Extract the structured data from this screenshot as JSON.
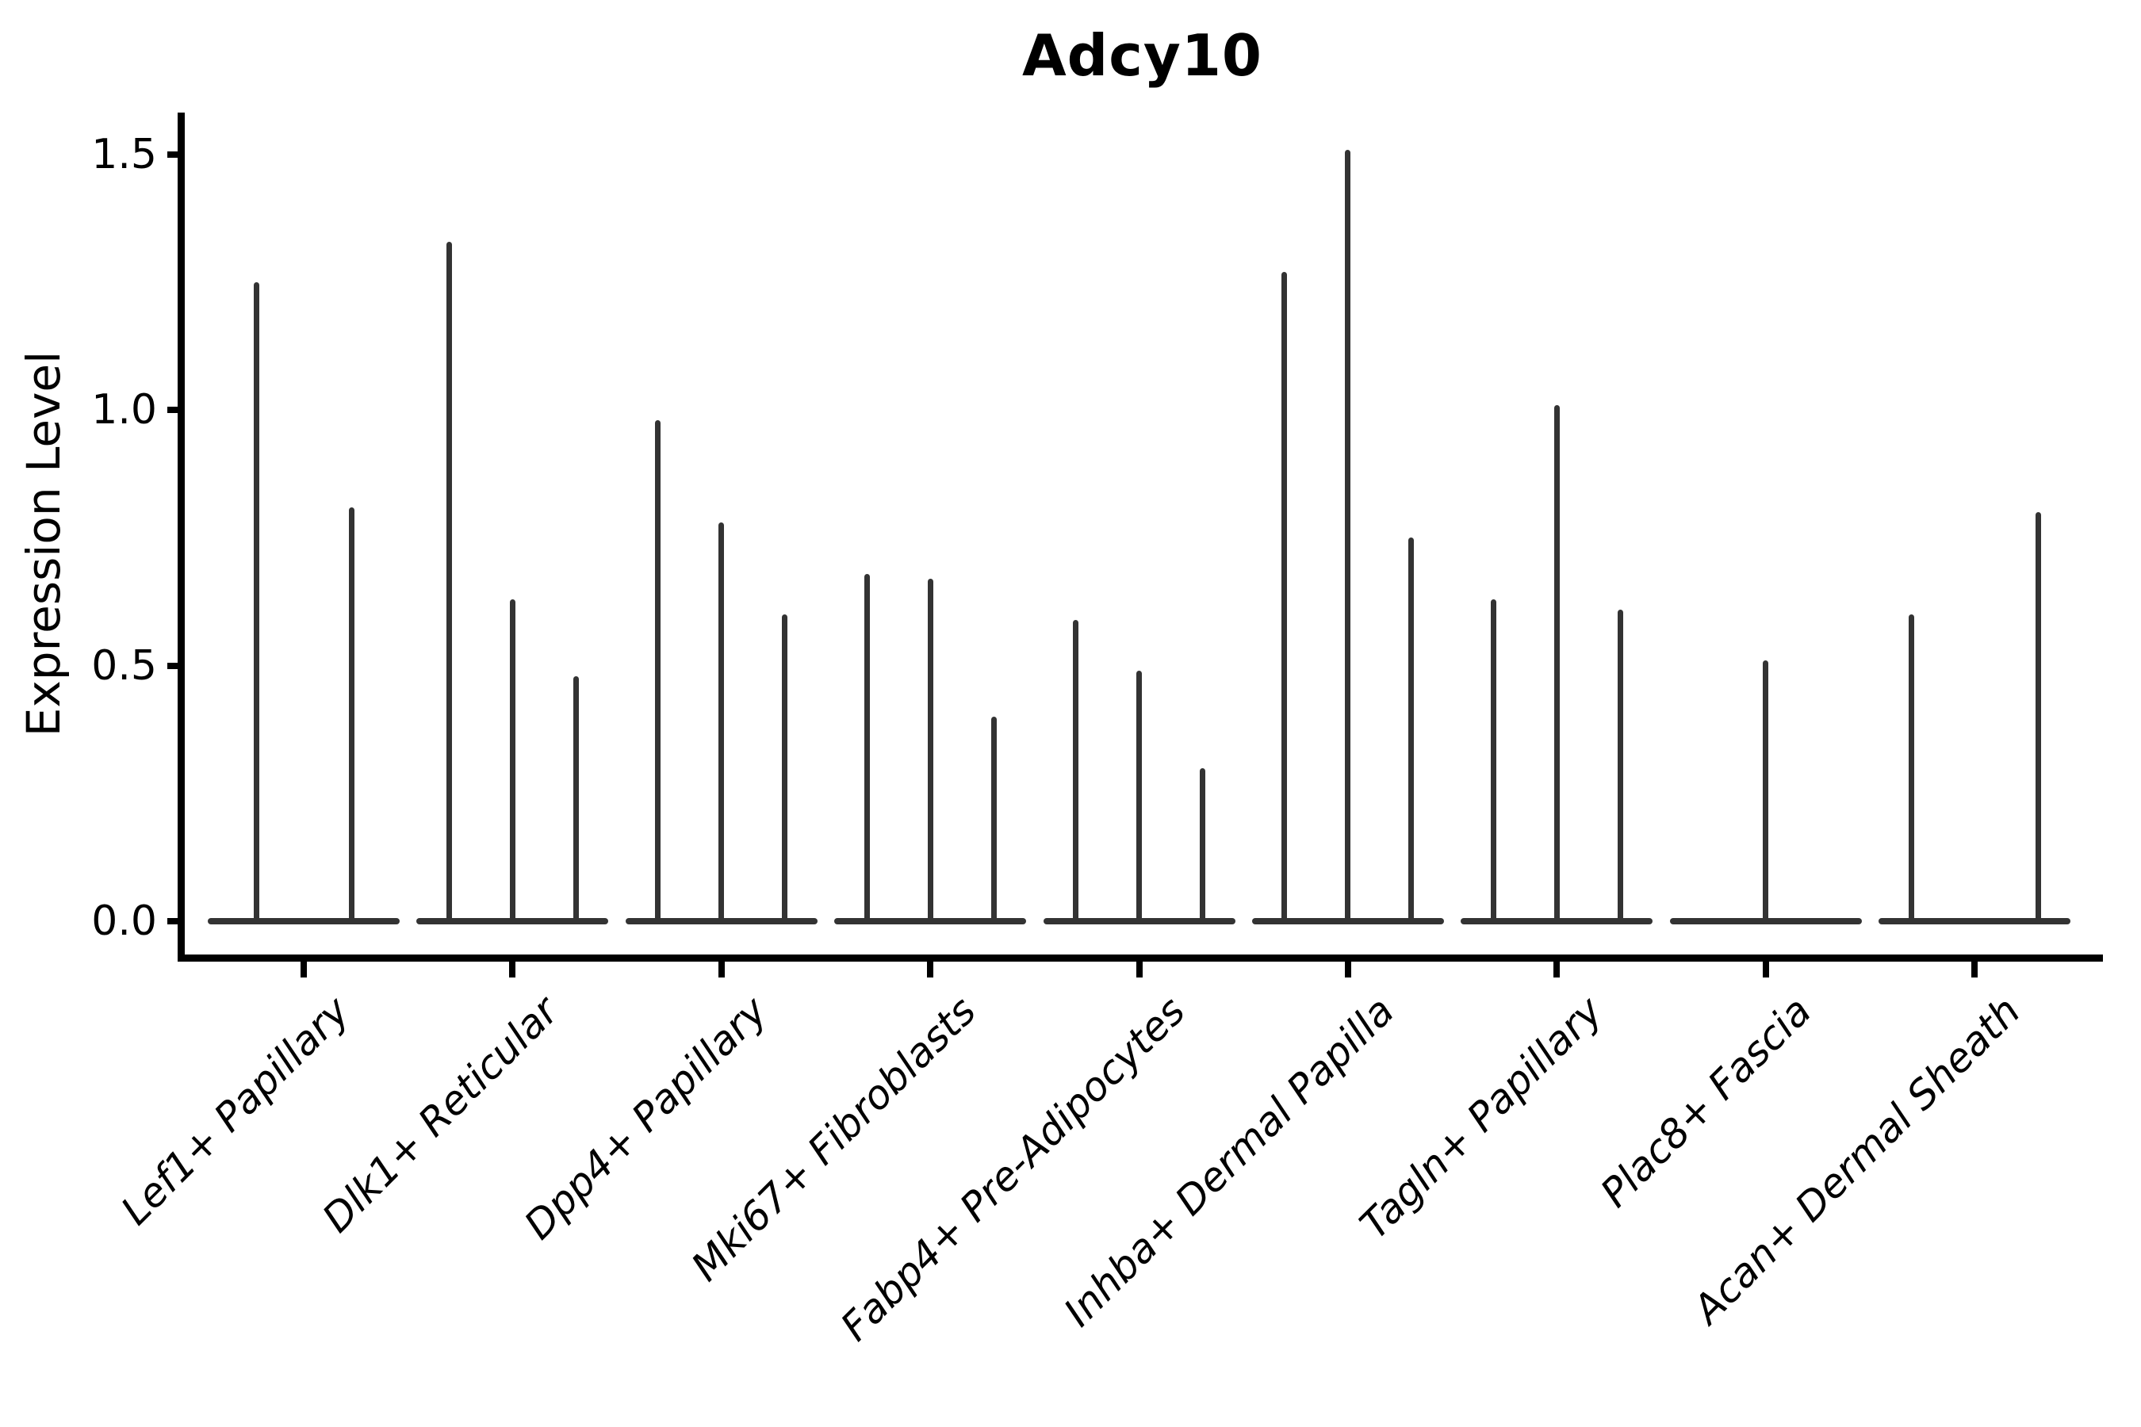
{
  "title": "Adcy10",
  "y_axis": {
    "label": "Expression Level",
    "tick_labels": [
      "0.0",
      "0.5",
      "1.0",
      "1.5"
    ]
  },
  "colors": {
    "violin": "#333333",
    "axis": "#000000",
    "background": "#ffffff"
  },
  "chart_data": {
    "type": "violin",
    "title": "Adcy10",
    "xlabel": "",
    "ylabel": "Expression Level",
    "ylim": [
      -0.07,
      1.58
    ],
    "yticks": [
      0,
      0.5,
      1.0,
      1.5
    ],
    "grid": "off",
    "legend": "none",
    "description": "Expression-level violin plot; each cell type holds 2-3 needle-thin violins (sub-violins) rising from a flat body at 0. Values below are the maximum expression (spike top) per sub-violin; 0 means a flat violin with no spike.",
    "categories": [
      "Lef1+ Papillary",
      "Dlk1+ Reticular",
      "Dpp4+ Papillary",
      "Mki67+ Fibroblasts",
      "Fabp4+ Pre-Adipocytes",
      "Inhba+ Dermal Papilla",
      "Tagln+ Papillary",
      "Plac8+ Fascia",
      "Acan+ Dermal Sheath"
    ],
    "groups": [
      {
        "category": "Lef1+ Papillary",
        "violin_maxima": [
          1.25,
          0.81
        ]
      },
      {
        "category": "Dlk1+ Reticular",
        "violin_maxima": [
          1.33,
          0.63,
          0.48
        ]
      },
      {
        "category": "Dpp4+ Papillary",
        "violin_maxima": [
          0.98,
          0.78,
          0.6
        ]
      },
      {
        "category": "Mki67+ Fibroblasts",
        "violin_maxima": [
          0.68,
          0.67,
          0.4
        ]
      },
      {
        "category": "Fabp4+ Pre-Adipocytes",
        "violin_maxima": [
          0.59,
          0.49,
          0.3
        ]
      },
      {
        "category": "Inhba+ Dermal Papilla",
        "violin_maxima": [
          1.27,
          1.51,
          0.75
        ]
      },
      {
        "category": "Tagln+ Papillary",
        "violin_maxima": [
          0.63,
          1.01,
          0.61
        ]
      },
      {
        "category": "Plac8+ Fascia",
        "violin_maxima": [
          0,
          0.51,
          0
        ]
      },
      {
        "category": "Acan+ Dermal Sheath",
        "violin_maxima": [
          0.6,
          0,
          0.8
        ]
      }
    ]
  }
}
